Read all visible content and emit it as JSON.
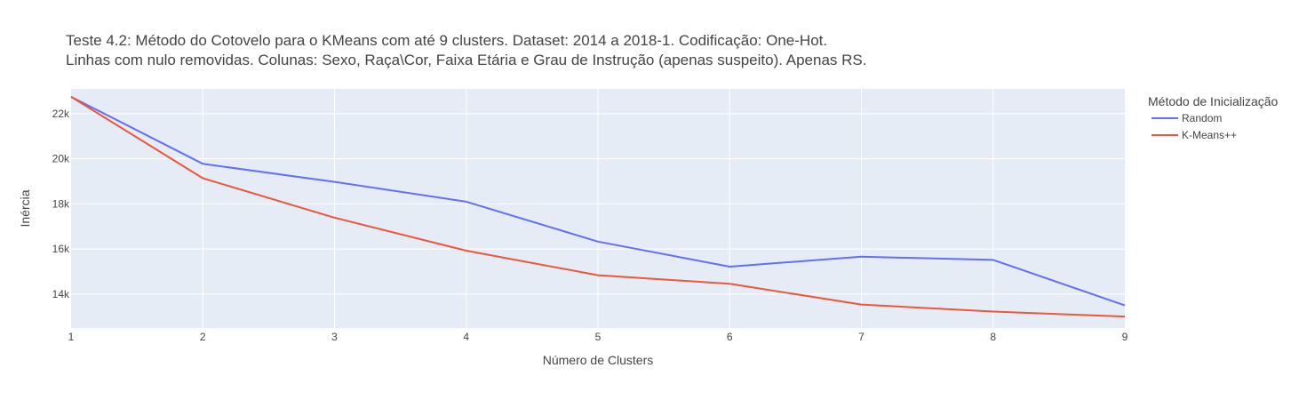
{
  "chart_data": {
    "type": "line",
    "title_lines": [
      "Teste 4.2: Método do Cotovelo para o KMeans com até 9 clusters. Dataset: 2014 a 2018-1. Codificação: One-Hot.",
      "Linhas com nulo removidas. Colunas: Sexo, Raça\\Cor, Faixa Etária e Grau de Instrução (apenas suspeito). Apenas RS."
    ],
    "xlabel": "Número de Clusters",
    "ylabel": "Inércia",
    "x": [
      1,
      2,
      3,
      4,
      5,
      6,
      7,
      8,
      9
    ],
    "xlim": [
      1,
      9
    ],
    "ylim": [
      12500,
      23100
    ],
    "x_ticks": [
      1,
      2,
      3,
      4,
      5,
      6,
      7,
      8,
      9
    ],
    "y_ticks": [
      14000,
      16000,
      18000,
      20000,
      22000
    ],
    "y_tick_labels": [
      "14k",
      "16k",
      "18k",
      "20k",
      "22k"
    ],
    "grid": true,
    "legend": {
      "title": "Método de Inicialização",
      "position": "right"
    },
    "series": [
      {
        "name": "Random",
        "color": "#636efa",
        "values": [
          22750,
          19780,
          18980,
          18100,
          16330,
          15220,
          15660,
          15520,
          13500
        ]
      },
      {
        "name": "K-Means++",
        "color": "#ef553b",
        "values": [
          22750,
          19140,
          17390,
          15930,
          14840,
          14460,
          13540,
          13230,
          13010
        ]
      }
    ]
  },
  "colors": {
    "plot_bg": "#e5ecf6",
    "grid": "#ffffff",
    "text": "#444444"
  }
}
